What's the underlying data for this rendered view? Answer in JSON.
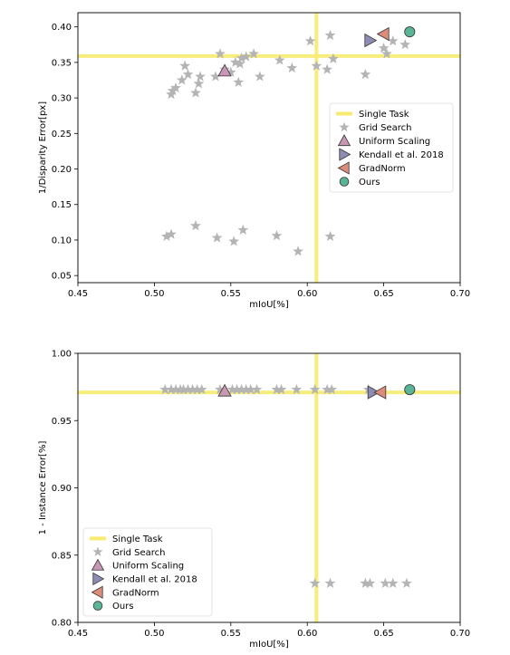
{
  "colors": {
    "single_task": "#f7ec6e",
    "grid_search": "#b4b4b4",
    "uniform_scaling": "#c996b4",
    "kendall": "#8c8cb4",
    "gradnorm": "#de8c7a",
    "ours": "#5ab496"
  },
  "chart_data": [
    {
      "type": "scatter",
      "xlabel": "mIoU[%]",
      "ylabel": "1/Disparity Error[px]",
      "xlim": [
        0.45,
        0.7
      ],
      "ylim": [
        0.04,
        0.42
      ],
      "xticks": [
        "0.45",
        "0.50",
        "0.55",
        "0.60",
        "0.65",
        "0.70"
      ],
      "yticks": [
        "0.05",
        "0.10",
        "0.15",
        "0.20",
        "0.25",
        "0.30",
        "0.35",
        "0.40"
      ],
      "xtick_values": [
        0.45,
        0.5,
        0.55,
        0.6,
        0.65,
        0.7
      ],
      "ytick_values": [
        0.05,
        0.1,
        0.15,
        0.2,
        0.25,
        0.3,
        0.35,
        0.4
      ],
      "legend_position": "right",
      "single_task": {
        "name": "Single Task",
        "x": 0.606,
        "y": 0.359
      },
      "series": [
        {
          "name": "Grid Search",
          "marker": "star",
          "x": [
            0.511,
            0.512,
            0.514,
            0.518,
            0.52,
            0.522,
            0.527,
            0.529,
            0.53,
            0.54,
            0.543,
            0.546,
            0.55,
            0.553,
            0.555,
            0.556,
            0.557,
            0.56,
            0.565,
            0.569,
            0.582,
            0.59,
            0.602,
            0.606,
            0.613,
            0.615,
            0.617,
            0.638,
            0.65,
            0.652,
            0.656,
            0.664,
            0.508,
            0.511,
            0.527,
            0.541,
            0.552,
            0.558,
            0.58,
            0.594,
            0.615
          ],
          "y": [
            0.305,
            0.31,
            0.314,
            0.325,
            0.345,
            0.333,
            0.307,
            0.32,
            0.33,
            0.33,
            0.362,
            0.34,
            0.336,
            0.35,
            0.322,
            0.348,
            0.356,
            0.358,
            0.362,
            0.33,
            0.353,
            0.342,
            0.38,
            0.345,
            0.34,
            0.388,
            0.355,
            0.333,
            0.37,
            0.362,
            0.38,
            0.375,
            0.105,
            0.108,
            0.12,
            0.103,
            0.098,
            0.114,
            0.106,
            0.084,
            0.105
          ]
        },
        {
          "name": "Uniform Scaling",
          "marker": "triangle-up",
          "x": [
            0.546
          ],
          "y": [
            0.338
          ]
        },
        {
          "name": "Kendall et al. 2018",
          "marker": "triangle-right",
          "x": [
            0.641
          ],
          "y": [
            0.381
          ]
        },
        {
          "name": "GradNorm",
          "marker": "triangle-left",
          "x": [
            0.65
          ],
          "y": [
            0.39
          ]
        },
        {
          "name": "Ours",
          "marker": "circle",
          "x": [
            0.667
          ],
          "y": [
            0.393
          ]
        }
      ]
    },
    {
      "type": "scatter",
      "xlabel": "mIoU[%]",
      "ylabel": "1 - Instance Error[%]",
      "xlim": [
        0.45,
        0.7
      ],
      "ylim": [
        0.8,
        1.0
      ],
      "xticks": [
        "0.45",
        "0.50",
        "0.55",
        "0.60",
        "0.65",
        "0.70"
      ],
      "yticks": [
        "0.80",
        "0.85",
        "0.90",
        "0.95",
        "1.00"
      ],
      "xtick_values": [
        0.45,
        0.5,
        0.55,
        0.6,
        0.65,
        0.7
      ],
      "ytick_values": [
        0.8,
        0.85,
        0.9,
        0.95,
        1.0
      ],
      "legend_position": "lower left",
      "single_task": {
        "name": "Single Task",
        "x": 0.606,
        "y": 0.971
      },
      "series": [
        {
          "name": "Grid Search",
          "marker": "star",
          "x": [
            0.507,
            0.511,
            0.514,
            0.517,
            0.519,
            0.522,
            0.525,
            0.528,
            0.531,
            0.543,
            0.551,
            0.554,
            0.557,
            0.56,
            0.563,
            0.567,
            0.58,
            0.583,
            0.593,
            0.605,
            0.613,
            0.616,
            0.64,
            0.605,
            0.615,
            0.638,
            0.641,
            0.651,
            0.656,
            0.665
          ],
          "y": [
            0.973,
            0.973,
            0.973,
            0.973,
            0.973,
            0.973,
            0.973,
            0.973,
            0.973,
            0.973,
            0.973,
            0.973,
            0.973,
            0.973,
            0.973,
            0.973,
            0.973,
            0.973,
            0.973,
            0.973,
            0.973,
            0.973,
            0.973,
            0.829,
            0.829,
            0.829,
            0.829,
            0.829,
            0.829,
            0.829
          ]
        },
        {
          "name": "Uniform Scaling",
          "marker": "triangle-up",
          "x": [
            0.546
          ],
          "y": [
            0.972
          ]
        },
        {
          "name": "Kendall et al. 2018",
          "marker": "triangle-right",
          "x": [
            0.643
          ],
          "y": [
            0.971
          ]
        },
        {
          "name": "GradNorm",
          "marker": "triangle-left",
          "x": [
            0.648
          ],
          "y": [
            0.971
          ]
        },
        {
          "name": "Ours",
          "marker": "circle",
          "x": [
            0.667
          ],
          "y": [
            0.973
          ]
        }
      ]
    }
  ]
}
